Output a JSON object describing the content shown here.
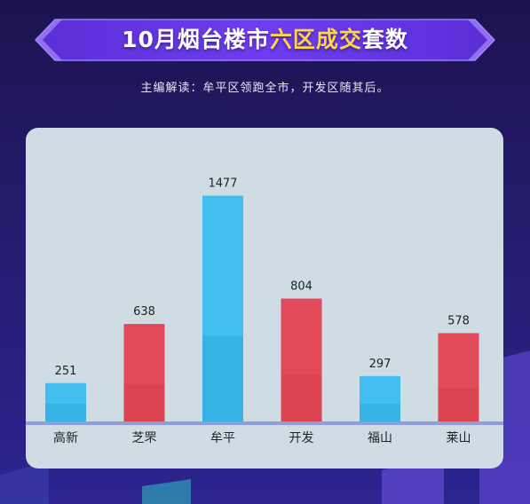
{
  "header": {
    "title_part1": "10月烟台楼市",
    "title_highlight": "六区成交",
    "title_part2": "套数",
    "subtitle": "主编解读：牟平区领跑全市，开发区随其后。"
  },
  "colors": {
    "blue": "#42bff0",
    "blue_dark": "#32b0e2",
    "red": "#e24a5a",
    "red_dark": "#d9434f",
    "baseline": "#8f9ed8",
    "panel": "#d0dce4",
    "title_highlight": "#ffd34a"
  },
  "chart_data": {
    "type": "bar",
    "categories": [
      "高新",
      "芝罘",
      "牟平",
      "开发",
      "福山",
      "莱山"
    ],
    "values": [
      251,
      638,
      1477,
      804,
      297,
      578
    ],
    "bar_colors": [
      "blue",
      "red",
      "blue",
      "red",
      "blue",
      "red"
    ],
    "ylim": [
      0,
      1550
    ],
    "grid": false,
    "legend": "none"
  }
}
